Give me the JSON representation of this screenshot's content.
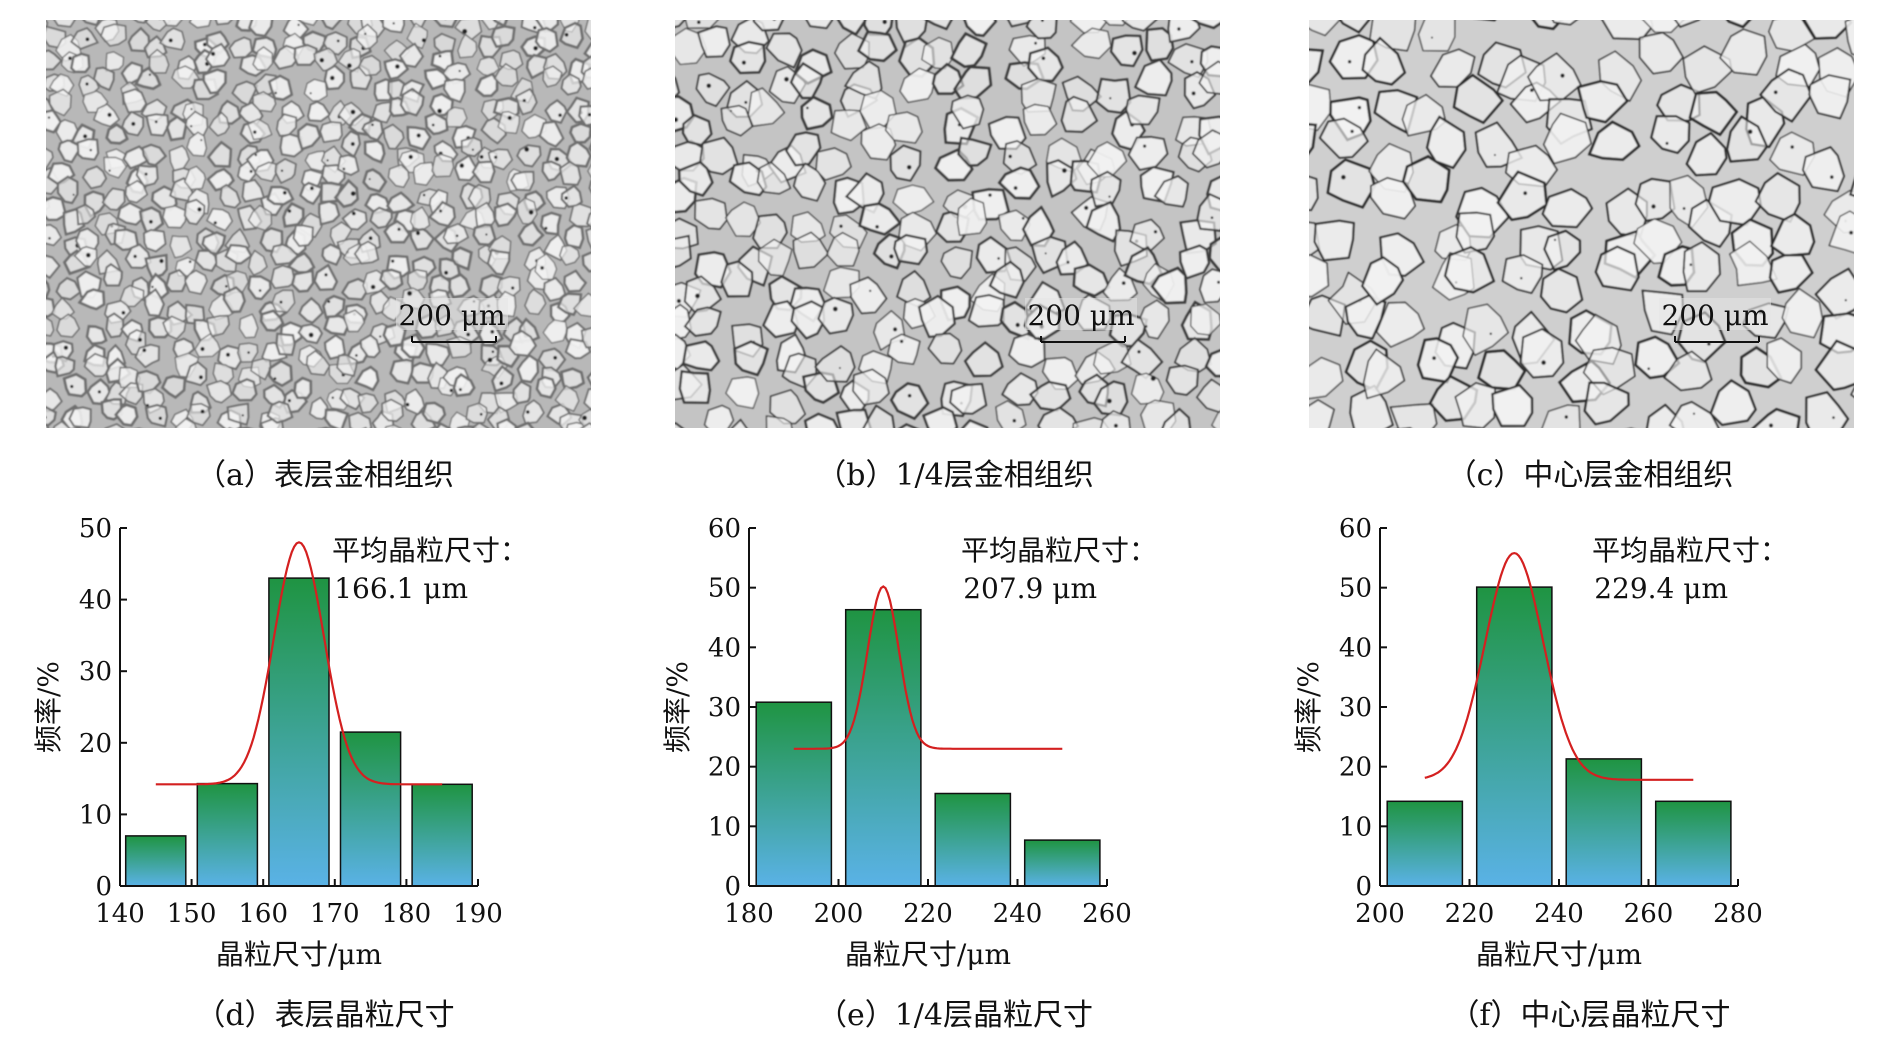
{
  "micrographs": [
    {
      "id": "a",
      "scale_bar": "200 μm",
      "caption": "（a）表层金相组织",
      "icon": "dendrite-micrograph-fine"
    },
    {
      "id": "b",
      "scale_bar": "200 μm",
      "caption": "（b）1/4层金相组织",
      "icon": "dendrite-micrograph-medium"
    },
    {
      "id": "c",
      "scale_bar": "200 μm",
      "caption": "（c）中心层金相组织",
      "icon": "dendrite-micrograph-coarse"
    }
  ],
  "colors": {
    "bar_top": "#1f9442",
    "bar_bottom": "#5ab2e6",
    "fit_curve": "#d42020",
    "axis": "#111111"
  },
  "chart_data": [
    {
      "type": "bar",
      "caption": "（d）表层晶粒尺寸",
      "annotation_line1": "平均晶粒尺寸：",
      "annotation_line2": "166.1 μm",
      "xlabel": "晶粒尺寸/μm",
      "ylabel": "频率/%",
      "xlim": [
        140,
        190
      ],
      "ylim": [
        0,
        50
      ],
      "xticks": [
        140,
        150,
        160,
        170,
        180,
        190
      ],
      "yticks": [
        0,
        10,
        20,
        30,
        40,
        50
      ],
      "bin_width": 10,
      "bins": [
        [
          140,
          7
        ],
        [
          150,
          14.3
        ],
        [
          160,
          43
        ],
        [
          170,
          21.5
        ],
        [
          180,
          14.2
        ]
      ],
      "fit_curve": {
        "center": 165,
        "sigma": 3.5,
        "baseline": 14.2,
        "peak": 48,
        "x_range": [
          145,
          185
        ]
      }
    },
    {
      "type": "bar",
      "caption": "（e）1/4层晶粒尺寸",
      "annotation_line1": "平均晶粒尺寸：",
      "annotation_line2": "207.9 μm",
      "xlabel": "晶粒尺寸/μm",
      "ylabel": "频率/%",
      "xlim": [
        180,
        260
      ],
      "ylim": [
        0,
        60
      ],
      "xticks": [
        180,
        200,
        220,
        240,
        260
      ],
      "yticks": [
        0,
        10,
        20,
        30,
        40,
        50,
        60
      ],
      "bin_width": 20,
      "bins": [
        [
          180,
          30.8
        ],
        [
          200,
          46.3
        ],
        [
          220,
          15.5
        ],
        [
          240,
          7.7
        ]
      ],
      "fit_curve": {
        "center": 210,
        "sigma": 3.5,
        "baseline": 23,
        "peak": 50.2,
        "x_range": [
          190,
          250
        ]
      }
    },
    {
      "type": "bar",
      "caption": "（f）中心层晶粒尺寸",
      "annotation_line1": "平均晶粒尺寸：",
      "annotation_line2": "229.4 μm",
      "xlabel": "晶粒尺寸/μm",
      "ylabel": "频率/%",
      "xlim": [
        200,
        280
      ],
      "ylim": [
        0,
        60
      ],
      "xticks": [
        200,
        220,
        240,
        260,
        280
      ],
      "yticks": [
        0,
        10,
        20,
        30,
        40,
        50,
        60
      ],
      "bin_width": 20,
      "bins": [
        [
          200,
          14.2
        ],
        [
          220,
          50.1
        ],
        [
          240,
          21.3
        ],
        [
          260,
          14.2
        ]
      ],
      "fit_curve": {
        "center": 230,
        "sigma": 6.5,
        "baseline": 17.8,
        "peak": 55.8,
        "x_range": [
          210,
          270
        ]
      }
    }
  ]
}
